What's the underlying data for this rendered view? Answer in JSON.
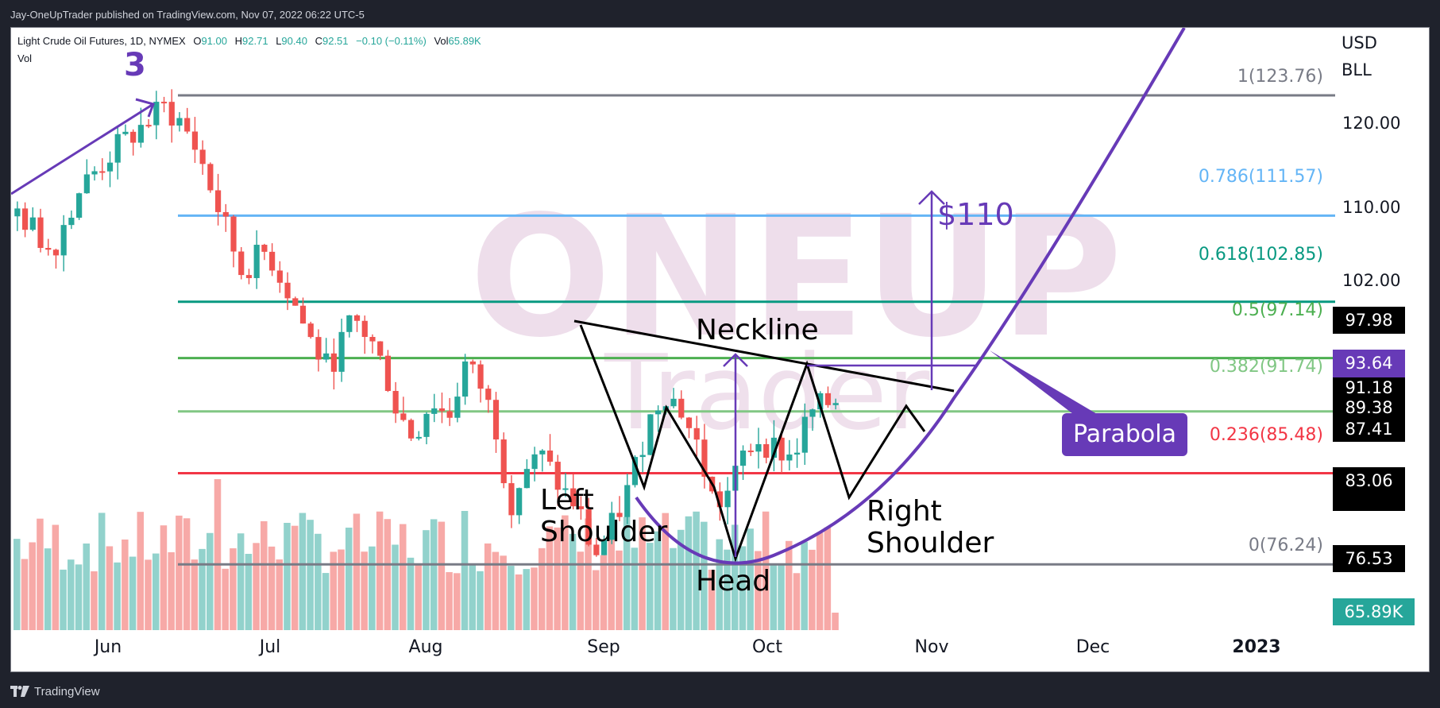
{
  "header": {
    "publish_line": "Jay-OneUpTrader published on TradingView.com, Nov 07, 2022 06:22 UTC-5"
  },
  "legend": {
    "symbol": "Light Crude Oil Futures, 1D, NYMEX",
    "open_label": "O",
    "open": "91.00",
    "high_label": "H",
    "high": "92.71",
    "low_label": "L",
    "low": "90.40",
    "close_label": "C",
    "close": "92.51",
    "change": "−0.10 (−0.11%)",
    "vol_label": "Vol",
    "vol": "65.89K",
    "indicator": "Vol"
  },
  "price_axis": {
    "currency": "USD",
    "unit": "BLL",
    "ticks": [
      "120.00",
      "110.00",
      "102.00"
    ],
    "tags": [
      {
        "value": "97.98",
        "bg": "#000000"
      },
      {
        "value": "93.64",
        "bg": "#673ab7"
      },
      {
        "value": "91.18",
        "bg": "#000000"
      },
      {
        "value": "89.38",
        "bg": "#000000"
      },
      {
        "value": "87.41",
        "bg": "#000000"
      },
      {
        "value": "83.06",
        "bg": "#000000"
      },
      {
        "value": "76.53",
        "bg": "#000000"
      },
      {
        "value": "65.89K",
        "bg": "#26a69a"
      }
    ]
  },
  "time_axis": {
    "labels": [
      "Jun",
      "Jul",
      "Aug",
      "Sep",
      "Oct",
      "Nov",
      "Dec",
      "2023"
    ]
  },
  "annotations": {
    "wave_label": "3",
    "neckline": "Neckline",
    "left_shoulder_1": "Left",
    "left_shoulder_2": "Shoulder",
    "head": "Head",
    "right_shoulder_1": "Right",
    "right_shoulder_2": "Shoulder",
    "target": "$110",
    "parabola": "Parabola",
    "watermark_1": "ONE",
    "watermark_2": "UP",
    "watermark_3": "Trader"
  },
  "fib_levels": [
    {
      "label": "1(123.76)",
      "level": 1,
      "price": 123.76,
      "color": "#787b86"
    },
    {
      "label": "0.786(111.57)",
      "level": 0.786,
      "price": 111.57,
      "color": "#64b5f6"
    },
    {
      "label": "0.618(102.85)",
      "level": 0.618,
      "price": 102.85,
      "color": "#089981"
    },
    {
      "label": "0.5(97.14)",
      "level": 0.5,
      "price": 97.14,
      "color": "#4caf50"
    },
    {
      "label": "0.382(91.74)",
      "level": 0.382,
      "price": 91.74,
      "color": "#81c784"
    },
    {
      "label": "0.236(85.48)",
      "level": 0.236,
      "price": 85.48,
      "color": "#f23645"
    },
    {
      "label": "0(76.24)",
      "level": 0,
      "price": 76.24,
      "color": "#787b86"
    }
  ],
  "colors": {
    "up": "#26a69a",
    "down": "#ef5350",
    "vol_up": "#92d2cc",
    "vol_down": "#f7a9a7",
    "annotation_purple": "#673ab7",
    "watermark": "#ecd9e8"
  },
  "footer": {
    "brand": "TradingView"
  },
  "chart_data": {
    "type": "candlestick",
    "title": "Light Crude Oil Futures, 1D, NYMEX",
    "xlabel": "",
    "ylabel": "USD / BLL",
    "x_ticks": [
      "Jun",
      "Jul",
      "Aug",
      "Sep",
      "Oct",
      "Nov",
      "Dec",
      "2023"
    ],
    "y_ticks": [
      102.0,
      110.0,
      120.0
    ],
    "ylim": [
      70,
      128
    ],
    "last_bar": {
      "open": 91.0,
      "high": 92.71,
      "low": 90.4,
      "close": 92.51,
      "change": -0.1,
      "change_pct": -0.11,
      "volume": "65.89K"
    },
    "fibonacci_retracement": [
      {
        "level": 1,
        "price": 123.76
      },
      {
        "level": 0.786,
        "price": 111.57
      },
      {
        "level": 0.618,
        "price": 102.85
      },
      {
        "level": 0.5,
        "price": 97.14
      },
      {
        "level": 0.382,
        "price": 91.74
      },
      {
        "level": 0.236,
        "price": 85.48
      },
      {
        "level": 0,
        "price": 76.24
      }
    ],
    "pattern": "Inverse Head and Shoulders",
    "pattern_points": [
      {
        "name": "Left Shoulder",
        "approx_price": 81.3,
        "approx_date": "Sep 8"
      },
      {
        "name": "Head",
        "approx_price": 76.3,
        "approx_date": "Sep 26"
      },
      {
        "name": "Right Shoulder",
        "approx_price": 82.1,
        "approx_date": "Oct 18"
      }
    ],
    "neckline": {
      "start_price": 97.8,
      "end_price": 91.2
    },
    "target_price": 110,
    "price_markers": [
      97.98,
      93.64,
      91.18,
      89.38,
      87.41,
      83.06,
      76.53
    ],
    "series": [
      {
        "name": "Volume",
        "type": "bar",
        "last": "65.89K"
      }
    ]
  }
}
